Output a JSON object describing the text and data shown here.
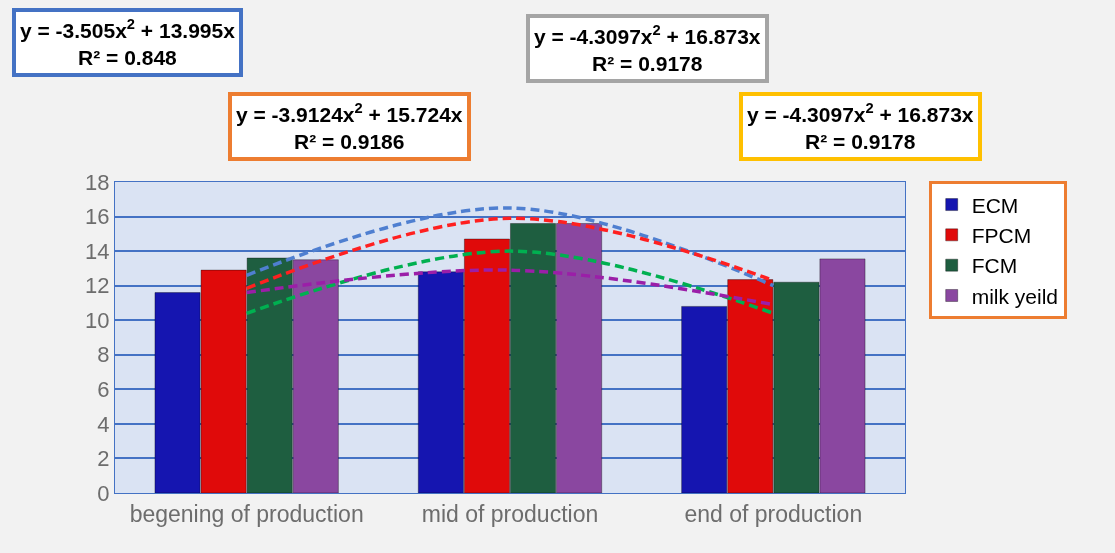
{
  "chart_data": {
    "type": "bar",
    "categories": [
      "begening of production",
      "mid of production",
      "end of production"
    ],
    "series": [
      {
        "name": "ECM",
        "color": "#1515b0",
        "values": [
          11.6,
          12.8,
          10.8
        ]
      },
      {
        "name": "FPCM",
        "color": "#e00a0a",
        "values": [
          12.9,
          14.7,
          12.35
        ]
      },
      {
        "name": "FCM",
        "color": "#1e5e40",
        "values": [
          13.6,
          15.6,
          12.2
        ]
      },
      {
        "name": "milk yeild",
        "color": "#8a47a0",
        "values": [
          13.5,
          15.6,
          13.55
        ]
      },
      {
        "type": "line",
        "color": "#4f7fd0",
        "x": [
          "begening of production",
          "mid of production",
          "end of production"
        ],
        "values": [
          12.6,
          16.5,
          12.0
        ]
      },
      {
        "type": "line",
        "color": "#ff2020",
        "x": [
          "begening of production",
          "mid of production",
          "end of production"
        ],
        "values": [
          11.85,
          15.9,
          12.3
        ]
      },
      {
        "type": "line",
        "color": "#00b050",
        "x": [
          "begening of production",
          "mid of production",
          "end of production"
        ],
        "values": [
          10.4,
          14.0,
          10.4
        ]
      },
      {
        "type": "line",
        "color": "#9b1ea8",
        "x": [
          "begening of production",
          "mid of production",
          "end of production"
        ],
        "values": [
          11.6,
          12.9,
          10.9
        ]
      }
    ],
    "ylim": [
      0,
      18
    ],
    "yticks": [
      0,
      2,
      4,
      6,
      8,
      10,
      12,
      14,
      16,
      18
    ],
    "grid": "y",
    "legend": "right",
    "line_style": "dashed",
    "annotations": [
      "y = -3.505x$^{2}$ + 13.995x\nR² = 0.848",
      "y = -3.9124x$^{2}$ + 15.724x\nR² = 0.9186",
      "y = -4.3097x$^{2}$ + 16.873x\nR² = 0.9178",
      "y = -4.3097x$^{2}$ + 16.873x\nR² = 0.9178"
    ]
  }
}
